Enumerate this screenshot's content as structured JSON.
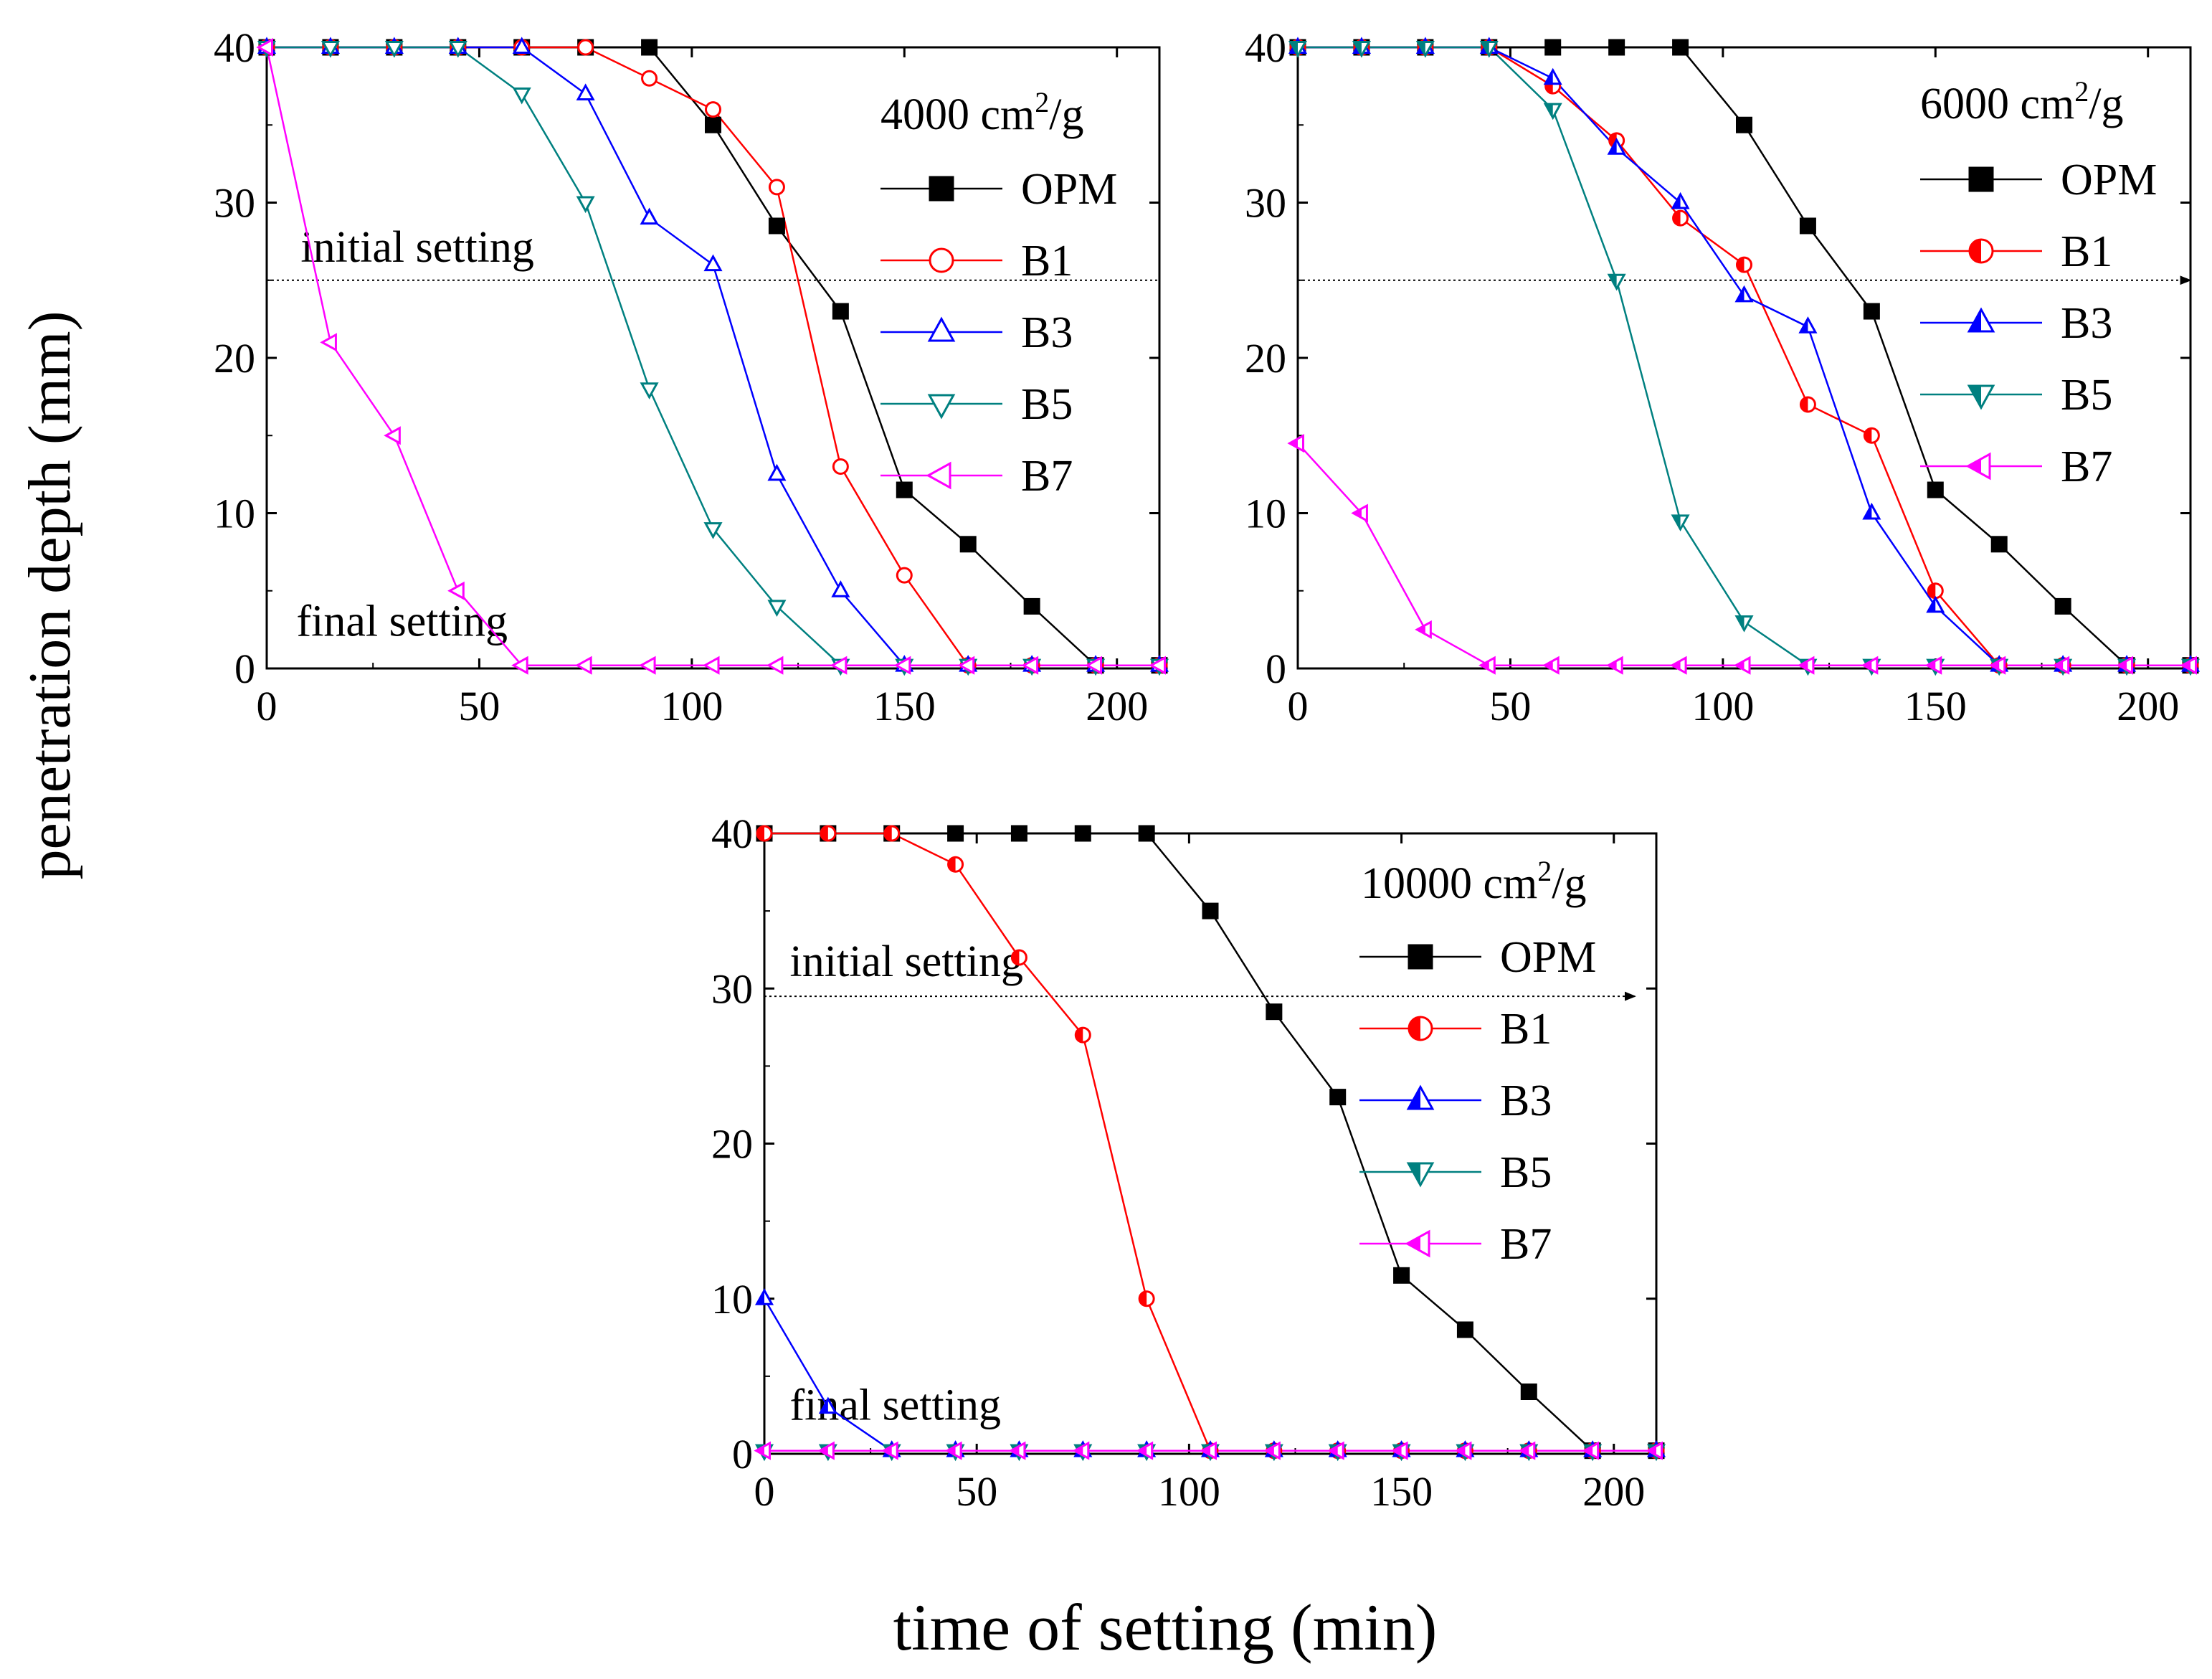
{
  "figure": {
    "ylabel": "penetration depth (mm)",
    "xlabel": "time of setting (min)"
  },
  "colors": {
    "OPM": "#000000",
    "B1": "#ff0000",
    "B3": "#0000ff",
    "B5": "#008080",
    "B7": "#ff00ff",
    "reference": "#000000"
  },
  "chart_data": [
    {
      "id": "p4000",
      "type": "line",
      "title": "4000 cm²/g",
      "title_base": "4000 cm",
      "title_sup": "2",
      "title_suffix": "/g",
      "xlim": [
        0,
        210
      ],
      "ylim": [
        0,
        40
      ],
      "xticks": [
        0,
        50,
        100,
        150,
        200
      ],
      "yticks": [
        0,
        10,
        20,
        30,
        40
      ],
      "marker_fill": "open",
      "annotations": [
        {
          "text": "initial setting",
          "x": 8,
          "y": 26.2
        },
        {
          "text": "final setting",
          "x": 7,
          "y": 2.1
        }
      ],
      "reference_line": {
        "y": 25,
        "x_start": 0,
        "x_end": 210,
        "arrow": false
      },
      "series": [
        {
          "name": "OPM",
          "marker": "square",
          "x": [
            0,
            15,
            30,
            45,
            60,
            75,
            90,
            105,
            120,
            135,
            150,
            165,
            180,
            195,
            210
          ],
          "y": [
            40,
            40,
            40,
            40,
            40,
            40,
            40,
            35,
            28.5,
            23,
            11.5,
            8,
            4,
            0.2,
            0.2
          ]
        },
        {
          "name": "B1",
          "marker": "circle",
          "x": [
            0,
            15,
            30,
            45,
            60,
            75,
            90,
            105,
            120,
            135,
            150,
            165,
            180,
            195,
            210
          ],
          "y": [
            40,
            40,
            40,
            40,
            40,
            40,
            38,
            36,
            31,
            13,
            6,
            0.2,
            0.2,
            0.2,
            0.2
          ]
        },
        {
          "name": "B3",
          "marker": "triangle-up",
          "x": [
            0,
            15,
            30,
            45,
            60,
            75,
            90,
            105,
            120,
            135,
            150,
            165,
            180,
            195,
            210
          ],
          "y": [
            40,
            40,
            40,
            40,
            40,
            37,
            29,
            26,
            12.5,
            5,
            0.2,
            0.2,
            0.2,
            0.2,
            0.2
          ]
        },
        {
          "name": "B5",
          "marker": "triangle-down",
          "x": [
            0,
            15,
            30,
            45,
            60,
            75,
            90,
            105,
            120,
            135,
            150,
            165,
            180,
            195,
            210
          ],
          "y": [
            40,
            40,
            40,
            40,
            37,
            30,
            18,
            9,
            4,
            0.2,
            0.2,
            0.2,
            0.2,
            0.2,
            0.2
          ]
        },
        {
          "name": "B7",
          "marker": "triangle-left",
          "x": [
            0,
            15,
            30,
            45,
            60,
            75,
            90,
            105,
            120,
            135,
            150,
            165,
            180,
            195,
            210
          ],
          "y": [
            40,
            21,
            15,
            5,
            0.2,
            0.2,
            0.2,
            0.2,
            0.2,
            0.2,
            0.2,
            0.2,
            0.2,
            0.2,
            0.2
          ]
        }
      ]
    },
    {
      "id": "p6000",
      "type": "line",
      "title": "6000 cm²/g",
      "title_base": "6000 cm",
      "title_sup": "2",
      "title_suffix": "/g",
      "xlim": [
        0,
        210
      ],
      "ylim": [
        0,
        40
      ],
      "xticks": [
        0,
        50,
        100,
        150,
        200
      ],
      "yticks": [
        0,
        10,
        20,
        30,
        40
      ],
      "marker_fill": "half",
      "annotations": [],
      "reference_line": {
        "y": 25,
        "x_start": 0,
        "x_end": 210,
        "arrow": true
      },
      "series": [
        {
          "name": "OPM",
          "marker": "square",
          "x": [
            0,
            15,
            30,
            45,
            60,
            75,
            90,
            105,
            120,
            135,
            150,
            165,
            180,
            195,
            210
          ],
          "y": [
            40,
            40,
            40,
            40,
            40,
            40,
            40,
            35,
            28.5,
            23,
            11.5,
            8,
            4,
            0.2,
            0.2
          ]
        },
        {
          "name": "B1",
          "marker": "circle",
          "x": [
            0,
            15,
            30,
            45,
            60,
            75,
            90,
            105,
            120,
            135,
            150,
            165,
            180,
            195,
            210
          ],
          "y": [
            40,
            40,
            40,
            40,
            37.5,
            34,
            29,
            26,
            17,
            15,
            5,
            0.2,
            0.2,
            0.2,
            0.2
          ]
        },
        {
          "name": "B3",
          "marker": "triangle-up",
          "x": [
            0,
            15,
            30,
            45,
            60,
            75,
            90,
            105,
            120,
            135,
            150,
            165,
            180,
            195,
            210
          ],
          "y": [
            40,
            40,
            40,
            40,
            38,
            33.5,
            30,
            24,
            22,
            10,
            4,
            0.2,
            0.2,
            0.2,
            0.2
          ]
        },
        {
          "name": "B5",
          "marker": "triangle-down",
          "x": [
            0,
            15,
            30,
            45,
            60,
            75,
            90,
            105,
            120,
            135,
            150,
            165,
            180,
            195,
            210
          ],
          "y": [
            40,
            40,
            40,
            40,
            36,
            25,
            9.5,
            3,
            0.2,
            0.2,
            0.2,
            0.2,
            0.2,
            0.2,
            0.2
          ]
        },
        {
          "name": "B7",
          "marker": "triangle-left",
          "x": [
            0,
            15,
            30,
            45,
            60,
            75,
            90,
            105,
            120,
            135,
            150,
            165,
            180,
            195,
            210
          ],
          "y": [
            14.5,
            10,
            2.5,
            0.2,
            0.2,
            0.2,
            0.2,
            0.2,
            0.2,
            0.2,
            0.2,
            0.2,
            0.2,
            0.2,
            0.2
          ]
        }
      ]
    },
    {
      "id": "p10000",
      "type": "line",
      "title": "10000 cm²/g",
      "title_base": "10000 cm",
      "title_sup": "2",
      "title_suffix": "/g",
      "xlim": [
        0,
        210
      ],
      "ylim": [
        0,
        40
      ],
      "xticks": [
        0,
        50,
        100,
        150,
        200
      ],
      "yticks": [
        0,
        10,
        20,
        30,
        40
      ],
      "marker_fill": "half",
      "annotations": [
        {
          "text": "initial setting",
          "x": 6,
          "y": 30.8
        },
        {
          "text": "final setting",
          "x": 6,
          "y": 2.2
        }
      ],
      "reference_line": {
        "y": 29.5,
        "x_start": 0,
        "x_end": 205,
        "arrow": true
      },
      "series": [
        {
          "name": "OPM",
          "marker": "square",
          "x": [
            0,
            15,
            30,
            45,
            60,
            75,
            90,
            105,
            120,
            135,
            150,
            165,
            180,
            195,
            210
          ],
          "y": [
            40,
            40,
            40,
            40,
            40,
            40,
            40,
            35,
            28.5,
            23,
            11.5,
            8,
            4,
            0.2,
            0.2
          ]
        },
        {
          "name": "B1",
          "marker": "circle",
          "x": [
            0,
            15,
            30,
            45,
            60,
            75,
            90,
            105,
            120,
            135,
            150,
            165,
            180,
            195,
            210
          ],
          "y": [
            40,
            40,
            40,
            38,
            32,
            27,
            10,
            0.2,
            0.2,
            0.2,
            0.2,
            0.2,
            0.2,
            0.2,
            0.2
          ]
        },
        {
          "name": "B3",
          "marker": "triangle-up",
          "x": [
            0,
            15,
            30,
            45,
            60,
            75,
            90,
            105,
            120,
            135,
            150,
            165,
            180,
            195,
            210
          ],
          "y": [
            10,
            3,
            0.2,
            0.2,
            0.2,
            0.2,
            0.2,
            0.2,
            0.2,
            0.2,
            0.2,
            0.2,
            0.2,
            0.2,
            0.2
          ]
        },
        {
          "name": "B5",
          "marker": "triangle-down",
          "x": [
            0,
            15,
            30,
            45,
            60,
            75,
            90,
            105,
            120,
            135,
            150,
            165,
            180,
            195,
            210
          ],
          "y": [
            0.2,
            0.2,
            0.2,
            0.2,
            0.2,
            0.2,
            0.2,
            0.2,
            0.2,
            0.2,
            0.2,
            0.2,
            0.2,
            0.2,
            0.2
          ]
        },
        {
          "name": "B7",
          "marker": "triangle-left",
          "x": [
            0,
            15,
            30,
            45,
            60,
            75,
            90,
            105,
            120,
            135,
            150,
            165,
            180,
            195,
            210
          ],
          "y": [
            0.2,
            0.2,
            0.2,
            0.2,
            0.2,
            0.2,
            0.2,
            0.2,
            0.2,
            0.2,
            0.2,
            0.2,
            0.2,
            0.2,
            0.2
          ]
        }
      ]
    }
  ]
}
